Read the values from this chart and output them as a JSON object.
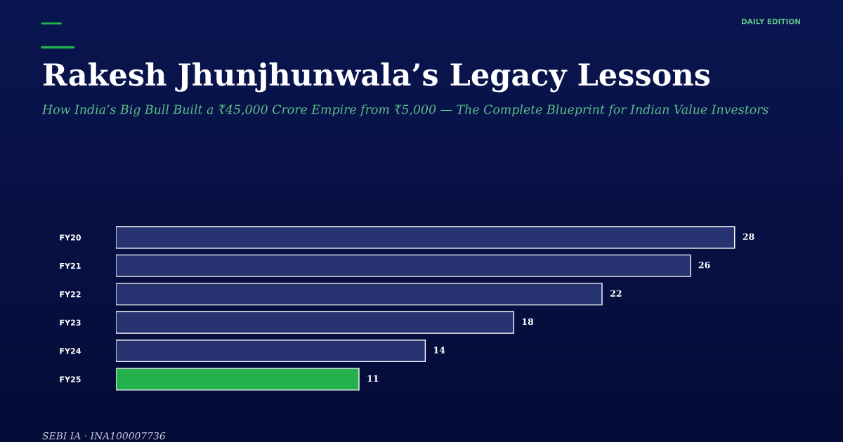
{
  "chart_data": {
    "type": "bar",
    "orientation": "horizontal",
    "title": "Rakesh Jhunjhunwala’s Legacy Lessons",
    "subtitle": "How India’s Big Bull Built a ₹45,000 Crore Empire from ₹5,000 — The Complete Blueprint for Indian Value Investors",
    "annotations": [
      "DAILY EDITION",
      "SEBI IA · INA100007736"
    ],
    "categories": [
      "FY20",
      "FY21",
      "FY22",
      "FY23",
      "FY24",
      "FY25"
    ],
    "values": [
      28,
      26,
      22,
      18,
      14,
      11
    ],
    "colors": [
      "#273270",
      "#273270",
      "#273270",
      "#273270",
      "#273270",
      "#22b14c"
    ],
    "data_labels": true,
    "grid": false,
    "legend": false
  }
}
